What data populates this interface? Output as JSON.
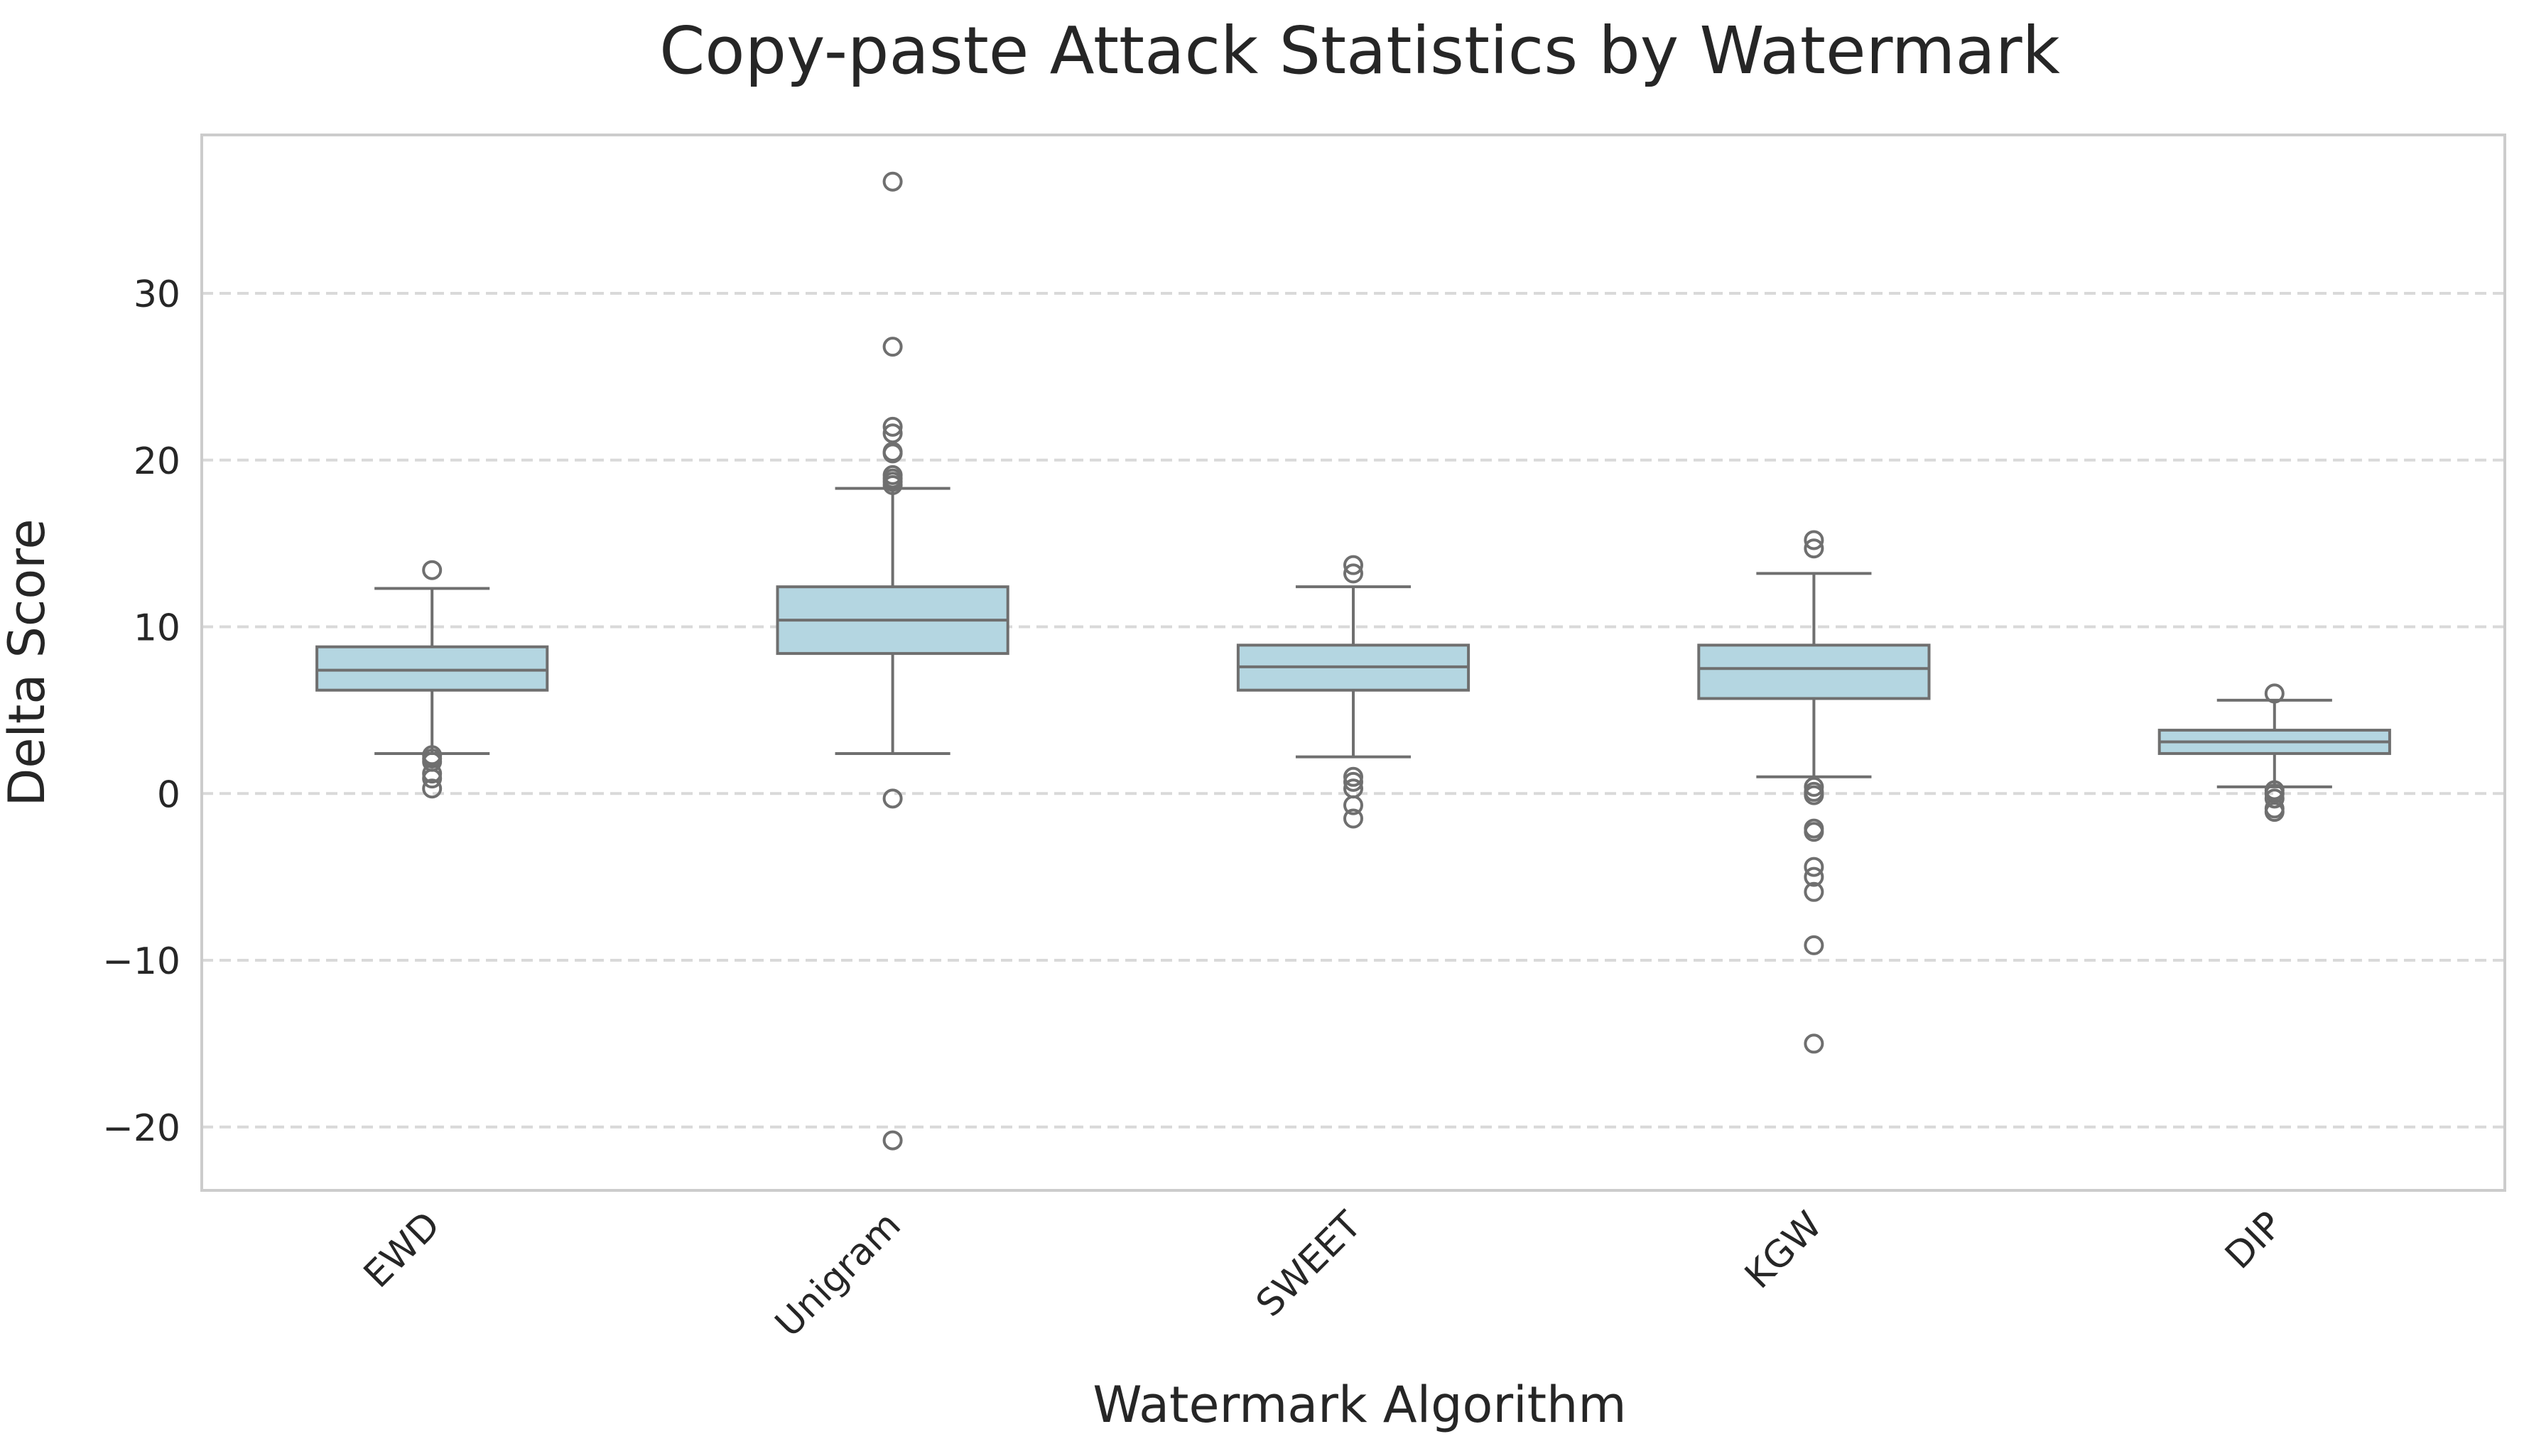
{
  "chart_data": {
    "type": "box",
    "title": "Copy-paste Attack Statistics by Watermark",
    "xlabel": "Watermark Algorithm",
    "ylabel": "Delta Score",
    "ylim": [
      -23.8,
      39.5
    ],
    "yticks": [
      -20,
      -10,
      0,
      10,
      20,
      30
    ],
    "ytick_labels": [
      "−20",
      "−10",
      "0",
      "10",
      "20",
      "30"
    ],
    "grid": "horizontal-dashed",
    "colors": {
      "box_fill": "#b4d6e1",
      "box_line": "#6f6f6f",
      "grid": "#d9d9d9",
      "frame": "#cccccc"
    },
    "categories": [
      "EWD",
      "Unigram",
      "SWEET",
      "KGW",
      "DIP"
    ],
    "boxes": [
      {
        "category": "EWD",
        "whisker_low": 2.4,
        "q1": 6.2,
        "median": 7.4,
        "q3": 8.8,
        "whisker_high": 12.3,
        "outliers": [
          13.4,
          2.3,
          2.1,
          1.9,
          1.2,
          0.9,
          0.3
        ]
      },
      {
        "category": "Unigram",
        "whisker_low": 2.4,
        "q1": 8.4,
        "median": 10.4,
        "q3": 12.4,
        "whisker_high": 18.3,
        "outliers": [
          36.7,
          26.8,
          22.0,
          21.6,
          20.5,
          20.4,
          19.1,
          18.9,
          18.7,
          18.5,
          -0.3,
          -20.8
        ]
      },
      {
        "category": "SWEET",
        "whisker_low": 2.2,
        "q1": 6.2,
        "median": 7.6,
        "q3": 8.9,
        "whisker_high": 12.4,
        "outliers": [
          13.7,
          13.2,
          1.0,
          0.7,
          0.3,
          -0.7,
          -1.5
        ]
      },
      {
        "category": "KGW",
        "whisker_low": 1.0,
        "q1": 5.7,
        "median": 7.5,
        "q3": 8.9,
        "whisker_high": 13.2,
        "outliers": [
          15.2,
          14.7,
          0.4,
          0.1,
          -0.1,
          -2.1,
          -2.3,
          -4.4,
          -5.0,
          -5.9,
          -9.1,
          -15.0
        ]
      },
      {
        "category": "DIP",
        "whisker_low": 0.4,
        "q1": 2.4,
        "median": 3.1,
        "q3": 3.8,
        "whisker_high": 5.6,
        "outliers": [
          6.0,
          0.2,
          0.0,
          -0.3,
          -0.9,
          -1.1
        ]
      }
    ]
  }
}
